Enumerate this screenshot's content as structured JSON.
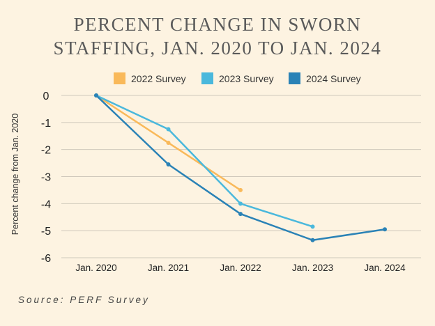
{
  "chart_data": {
    "type": "line",
    "title_lines": [
      "Percent change in sworn",
      "staffing, Jan. 2020 to Jan. 2024"
    ],
    "xlabel": "",
    "ylabel": "Percent change from Jan. 2020",
    "categories": [
      "Jan. 2020",
      "Jan. 2021",
      "Jan. 2022",
      "Jan. 2023",
      "Jan. 2024"
    ],
    "ylim": [
      -6,
      0
    ],
    "yticks": [
      "0",
      "-1",
      "-2",
      "-3",
      "-4",
      "-5",
      "-6"
    ],
    "grid": true,
    "legend_position": "top",
    "series": [
      {
        "name": "2022 Survey",
        "color": "#f9b95a",
        "values": [
          0,
          -1.75,
          -3.5,
          null,
          null
        ]
      },
      {
        "name": "2023 Survey",
        "color": "#4ab8dc",
        "values": [
          0,
          -1.25,
          -4.0,
          -4.85,
          null
        ]
      },
      {
        "name": "2024 Survey",
        "color": "#2a82b6",
        "values": [
          0,
          -2.55,
          -4.38,
          -5.35,
          -4.95
        ]
      }
    ]
  },
  "source": "Source: PERF Survey"
}
